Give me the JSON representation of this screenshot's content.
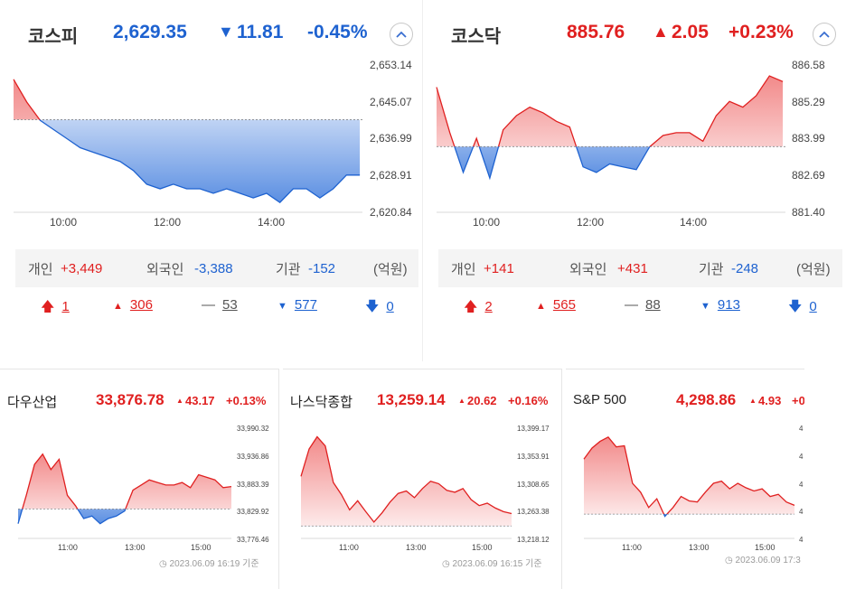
{
  "kospi": {
    "name": "코스피",
    "value": "2,629.35",
    "change_arrow": "▼",
    "change": "11.81",
    "change_pct": "-0.45%",
    "direction": "down",
    "y_ticks": [
      "2,653.14",
      "2,645.07",
      "2,636.99",
      "2,628.91",
      "2,620.84"
    ],
    "x_ticks": [
      "10:00",
      "12:00",
      "14:00"
    ],
    "investors": {
      "individual_label": "개인",
      "individual_value": "+3,449",
      "foreign_label": "외국인",
      "foreign_value": "-3,388",
      "institution_label": "기관",
      "institution_value": "-152",
      "unit": "(억원)"
    },
    "breadth": {
      "upper_limit": "1",
      "rising": "306",
      "unchanged": "53",
      "falling": "577",
      "lower_limit": "0"
    }
  },
  "kosdaq": {
    "name": "코스닥",
    "value": "885.76",
    "change_arrow": "▲",
    "change": "2.05",
    "change_pct": "+0.23%",
    "direction": "up",
    "y_ticks": [
      "886.58",
      "885.29",
      "883.99",
      "882.69",
      "881.40"
    ],
    "x_ticks": [
      "10:00",
      "12:00",
      "14:00"
    ],
    "investors": {
      "individual_label": "개인",
      "individual_value": "+141",
      "foreign_label": "외국인",
      "foreign_value": "+431",
      "institution_label": "기관",
      "institution_value": "-248",
      "unit": "(억원)"
    },
    "breadth": {
      "upper_limit": "2",
      "rising": "565",
      "unchanged": "88",
      "falling": "913",
      "lower_limit": "0"
    }
  },
  "dow": {
    "name": "다우산업",
    "value": "33,876.78",
    "change_arrow": "▲",
    "change": "43.17",
    "change_pct": "+0.13%",
    "y_ticks": [
      "33,990.32",
      "33,936.86",
      "33,883.39",
      "33,829.92",
      "33,776.46"
    ],
    "x_ticks": [
      "11:00",
      "13:00",
      "15:00"
    ],
    "timestamp": "2023.06.09 16:19 기준"
  },
  "nasdaq": {
    "name": "나스닥종합",
    "value": "13,259.14",
    "change_arrow": "▲",
    "change": "20.62",
    "change_pct": "+0.16%",
    "y_ticks": [
      "13,399.17",
      "13,353.91",
      "13,308.65",
      "13,263.38",
      "13,218.12"
    ],
    "x_ticks": [
      "11:00",
      "13:00",
      "15:00"
    ],
    "timestamp": "2023.06.09 16:15 기준"
  },
  "sp500": {
    "name": "S&P 500",
    "value": "4,298.86",
    "change_arrow": "▲",
    "change": "4.93",
    "change_pct": "+0",
    "y_ticks": [
      "4",
      "4",
      "4",
      "4",
      "4"
    ],
    "x_ticks": [
      "11:00",
      "13:00",
      "15:00"
    ],
    "timestamp": "2023.06.09 17:3"
  },
  "colors": {
    "up": "#e02020",
    "down": "#1e62d0"
  },
  "icons": {
    "collapse": "chevron-up-icon",
    "upper_limit": "arrow-up-icon",
    "rising": "triangle-up-icon",
    "unchanged": "dash-icon",
    "falling": "triangle-down-icon",
    "lower_limit": "arrow-down-icon",
    "timestamp": "clock-icon"
  },
  "chart_data": [
    {
      "type": "area",
      "title": "코스피",
      "x": [
        9.0,
        9.25,
        9.5,
        9.75,
        10.0,
        10.25,
        10.5,
        10.75,
        11.0,
        11.25,
        11.5,
        11.75,
        12.0,
        12.25,
        12.5,
        12.75,
        13.0,
        13.25,
        13.5,
        13.75,
        14.0,
        14.25,
        14.5,
        14.75,
        15.0,
        15.25,
        15.5
      ],
      "y": [
        2650,
        2645,
        2641,
        2639,
        2637,
        2635,
        2634,
        2633,
        2632,
        2630,
        2627,
        2626,
        2627,
        2626,
        2626,
        2625,
        2626,
        2625,
        2624,
        2625,
        2623,
        2626,
        2626,
        2624,
        2626,
        2629,
        2629
      ],
      "baseline": 2641.16,
      "ylim": [
        2620.84,
        2653.14
      ],
      "xlim": [
        9,
        15.55
      ]
    },
    {
      "type": "area",
      "title": "코스닥",
      "x": [
        9.0,
        9.25,
        9.5,
        9.75,
        10.0,
        10.25,
        10.5,
        10.75,
        11.0,
        11.25,
        11.5,
        11.75,
        12.0,
        12.25,
        12.5,
        12.75,
        13.0,
        13.25,
        13.5,
        13.75,
        14.0,
        14.25,
        14.5,
        14.75,
        15.0,
        15.25,
        15.5
      ],
      "y": [
        885.8,
        884.2,
        882.8,
        884.0,
        882.6,
        884.3,
        884.8,
        885.1,
        884.9,
        884.6,
        884.4,
        883.0,
        882.8,
        883.1,
        883.0,
        882.9,
        883.7,
        884.1,
        884.2,
        884.2,
        883.9,
        884.8,
        885.3,
        885.1,
        885.5,
        886.2,
        886.0
      ],
      "baseline": 883.71,
      "ylim": [
        881.4,
        886.58
      ],
      "xlim": [
        9,
        15.55
      ]
    },
    {
      "type": "area",
      "title": "다우산업",
      "x": [
        9.5,
        9.75,
        10.0,
        10.25,
        10.5,
        10.75,
        11.0,
        11.25,
        11.5,
        11.75,
        12.0,
        12.25,
        12.5,
        12.75,
        13.0,
        13.25,
        13.5,
        13.75,
        14.0,
        14.25,
        14.5,
        14.75,
        15.0,
        15.25,
        15.5,
        15.75,
        16.0
      ],
      "y": [
        33805,
        33860,
        33920,
        33940,
        33910,
        33930,
        33860,
        33840,
        33815,
        33820,
        33805,
        33815,
        33820,
        33830,
        33870,
        33880,
        33890,
        33885,
        33880,
        33880,
        33885,
        33875,
        33900,
        33895,
        33890,
        33875,
        33877
      ],
      "baseline": 33833.61,
      "ylim": [
        33776.46,
        33990.32
      ],
      "xlim": [
        9.5,
        16.0
      ]
    },
    {
      "type": "area",
      "title": "나스닥종합",
      "x": [
        9.5,
        9.75,
        10.0,
        10.25,
        10.5,
        10.75,
        11.0,
        11.25,
        11.5,
        11.75,
        12.0,
        12.25,
        12.5,
        12.75,
        13.0,
        13.25,
        13.5,
        13.75,
        14.0,
        14.25,
        14.5,
        14.75,
        15.0,
        15.25,
        15.5,
        15.75,
        16.0
      ],
      "y": [
        13320,
        13365,
        13385,
        13370,
        13310,
        13290,
        13265,
        13280,
        13262,
        13245,
        13260,
        13278,
        13292,
        13296,
        13285,
        13300,
        13312,
        13308,
        13297,
        13294,
        13300,
        13282,
        13272,
        13276,
        13268,
        13262,
        13259
      ],
      "baseline": 13238.52,
      "ylim": [
        13218.12,
        13399.17
      ],
      "xlim": [
        9.5,
        16.0
      ]
    },
    {
      "type": "area",
      "title": "S&P 500",
      "x": [
        9.5,
        9.75,
        10.0,
        10.25,
        10.5,
        10.75,
        11.0,
        11.25,
        11.5,
        11.75,
        12.0,
        12.25,
        12.5,
        12.75,
        13.0,
        13.25,
        13.5,
        13.75,
        14.0,
        14.25,
        14.5,
        14.75,
        15.0,
        15.25,
        15.5,
        15.75,
        16.0
      ],
      "y": [
        0.72,
        0.82,
        0.88,
        0.92,
        0.83,
        0.84,
        0.5,
        0.42,
        0.28,
        0.36,
        0.2,
        0.28,
        0.38,
        0.34,
        0.33,
        0.42,
        0.5,
        0.52,
        0.45,
        0.5,
        0.46,
        0.43,
        0.45,
        0.38,
        0.4,
        0.33,
        0.3
      ],
      "baseline": 0.22,
      "ylim": [
        0,
        1
      ],
      "xlim": [
        9.5,
        16.0
      ]
    }
  ]
}
